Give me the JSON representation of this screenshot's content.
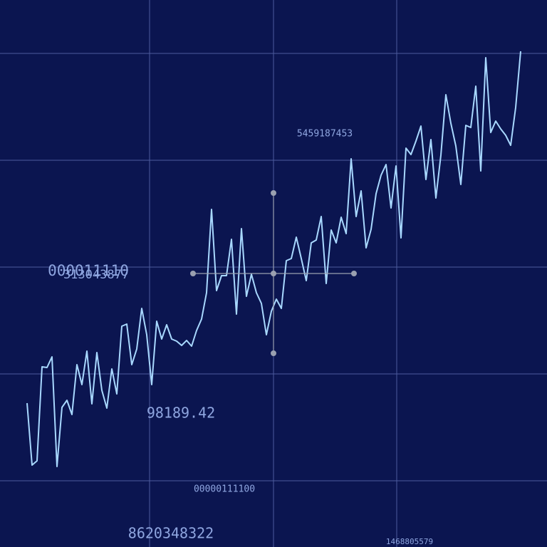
{
  "chart_data": {
    "type": "line",
    "annotations": [
      "5459187453",
      "000011110",
      "313043877",
      "98189.42",
      "00000111100",
      "8620348322",
      "1468805579"
    ],
    "x": [
      38,
      45,
      52,
      59,
      66,
      73,
      80,
      87,
      94,
      101,
      108,
      115,
      122,
      129,
      136,
      143,
      150,
      157,
      164,
      171,
      178,
      185,
      192,
      199,
      206,
      213,
      220,
      227,
      234,
      241,
      248,
      255,
      262,
      269,
      276,
      283,
      290,
      297,
      304,
      311,
      318,
      325,
      332,
      339,
      346,
      353,
      360,
      367,
      374,
      381,
      388,
      395,
      402,
      409,
      416,
      423,
      430,
      437,
      444,
      451,
      458,
      465,
      472,
      479,
      486,
      493,
      500,
      507,
      514,
      521,
      528,
      535,
      542,
      549,
      556,
      563,
      570,
      577,
      584,
      591,
      598,
      605,
      612,
      619,
      626,
      633,
      640,
      647,
      654,
      661,
      668,
      675,
      682,
      689,
      696,
      703,
      710,
      717,
      724,
      731
    ],
    "series": [
      {
        "color": "#a8d8ff",
        "values": [
          202,
          115,
          121,
          253,
          252,
          267,
          113,
          196,
          206,
          186,
          256,
          228,
          275,
          201,
          273,
          220,
          195,
          250,
          215,
          310,
          313,
          256,
          278,
          335,
          298,
          228,
          317,
          292,
          312,
          292,
          289,
          283,
          290,
          282,
          304,
          320,
          357,
          474,
          360,
          381,
          381,
          432,
          327,
          447,
          352,
          383,
          357,
          342,
          298,
          331,
          348,
          335,
          402,
          405,
          435,
          405,
          374,
          427,
          431,
          464,
          370,
          445,
          427,
          463,
          440,
          545,
          464,
          500,
          420,
          446,
          496,
          522,
          537,
          476,
          535,
          434,
          560,
          551,
          570,
          591,
          516,
          572,
          490,
          550,
          635,
          595,
          563,
          509,
          592,
          589,
          647,
          528,
          687,
          582,
          598,
          587,
          578,
          564,
          617,
          696
        ]
      }
    ],
    "xlim": [
      0,
      768
    ],
    "ylim": [
      0,
      768
    ],
    "xticks": [
      210,
      384,
      557
    ],
    "yticks": [
      93,
      243,
      393,
      543,
      693
    ],
    "grid": true
  }
}
